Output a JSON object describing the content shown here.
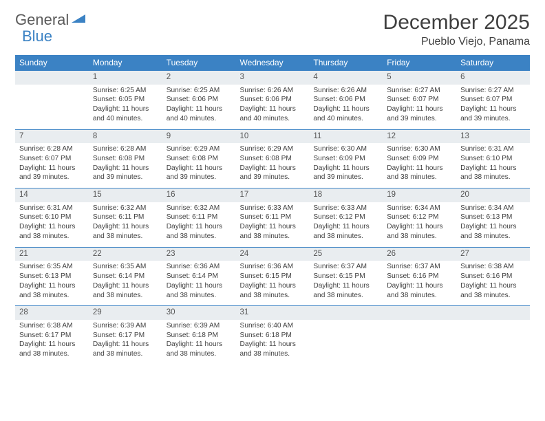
{
  "logo": {
    "part1": "General",
    "part2": "Blue"
  },
  "title": "December 2025",
  "location": "Pueblo Viejo, Panama",
  "colors": {
    "header_bg": "#3b82c4",
    "header_text": "#ffffff",
    "daynum_bg": "#e9edf0",
    "border": "#3b82c4",
    "text": "#404040"
  },
  "weekdays": [
    "Sunday",
    "Monday",
    "Tuesday",
    "Wednesday",
    "Thursday",
    "Friday",
    "Saturday"
  ],
  "weeks": [
    {
      "nums": [
        "",
        "1",
        "2",
        "3",
        "4",
        "5",
        "6"
      ],
      "cells": [
        null,
        {
          "sr": "Sunrise: 6:25 AM",
          "ss": "Sunset: 6:05 PM",
          "d1": "Daylight: 11 hours",
          "d2": "and 40 minutes."
        },
        {
          "sr": "Sunrise: 6:25 AM",
          "ss": "Sunset: 6:06 PM",
          "d1": "Daylight: 11 hours",
          "d2": "and 40 minutes."
        },
        {
          "sr": "Sunrise: 6:26 AM",
          "ss": "Sunset: 6:06 PM",
          "d1": "Daylight: 11 hours",
          "d2": "and 40 minutes."
        },
        {
          "sr": "Sunrise: 6:26 AM",
          "ss": "Sunset: 6:06 PM",
          "d1": "Daylight: 11 hours",
          "d2": "and 40 minutes."
        },
        {
          "sr": "Sunrise: 6:27 AM",
          "ss": "Sunset: 6:07 PM",
          "d1": "Daylight: 11 hours",
          "d2": "and 39 minutes."
        },
        {
          "sr": "Sunrise: 6:27 AM",
          "ss": "Sunset: 6:07 PM",
          "d1": "Daylight: 11 hours",
          "d2": "and 39 minutes."
        }
      ]
    },
    {
      "nums": [
        "7",
        "8",
        "9",
        "10",
        "11",
        "12",
        "13"
      ],
      "cells": [
        {
          "sr": "Sunrise: 6:28 AM",
          "ss": "Sunset: 6:07 PM",
          "d1": "Daylight: 11 hours",
          "d2": "and 39 minutes."
        },
        {
          "sr": "Sunrise: 6:28 AM",
          "ss": "Sunset: 6:08 PM",
          "d1": "Daylight: 11 hours",
          "d2": "and 39 minutes."
        },
        {
          "sr": "Sunrise: 6:29 AM",
          "ss": "Sunset: 6:08 PM",
          "d1": "Daylight: 11 hours",
          "d2": "and 39 minutes."
        },
        {
          "sr": "Sunrise: 6:29 AM",
          "ss": "Sunset: 6:08 PM",
          "d1": "Daylight: 11 hours",
          "d2": "and 39 minutes."
        },
        {
          "sr": "Sunrise: 6:30 AM",
          "ss": "Sunset: 6:09 PM",
          "d1": "Daylight: 11 hours",
          "d2": "and 39 minutes."
        },
        {
          "sr": "Sunrise: 6:30 AM",
          "ss": "Sunset: 6:09 PM",
          "d1": "Daylight: 11 hours",
          "d2": "and 38 minutes."
        },
        {
          "sr": "Sunrise: 6:31 AM",
          "ss": "Sunset: 6:10 PM",
          "d1": "Daylight: 11 hours",
          "d2": "and 38 minutes."
        }
      ]
    },
    {
      "nums": [
        "14",
        "15",
        "16",
        "17",
        "18",
        "19",
        "20"
      ],
      "cells": [
        {
          "sr": "Sunrise: 6:31 AM",
          "ss": "Sunset: 6:10 PM",
          "d1": "Daylight: 11 hours",
          "d2": "and 38 minutes."
        },
        {
          "sr": "Sunrise: 6:32 AM",
          "ss": "Sunset: 6:11 PM",
          "d1": "Daylight: 11 hours",
          "d2": "and 38 minutes."
        },
        {
          "sr": "Sunrise: 6:32 AM",
          "ss": "Sunset: 6:11 PM",
          "d1": "Daylight: 11 hours",
          "d2": "and 38 minutes."
        },
        {
          "sr": "Sunrise: 6:33 AM",
          "ss": "Sunset: 6:11 PM",
          "d1": "Daylight: 11 hours",
          "d2": "and 38 minutes."
        },
        {
          "sr": "Sunrise: 6:33 AM",
          "ss": "Sunset: 6:12 PM",
          "d1": "Daylight: 11 hours",
          "d2": "and 38 minutes."
        },
        {
          "sr": "Sunrise: 6:34 AM",
          "ss": "Sunset: 6:12 PM",
          "d1": "Daylight: 11 hours",
          "d2": "and 38 minutes."
        },
        {
          "sr": "Sunrise: 6:34 AM",
          "ss": "Sunset: 6:13 PM",
          "d1": "Daylight: 11 hours",
          "d2": "and 38 minutes."
        }
      ]
    },
    {
      "nums": [
        "21",
        "22",
        "23",
        "24",
        "25",
        "26",
        "27"
      ],
      "cells": [
        {
          "sr": "Sunrise: 6:35 AM",
          "ss": "Sunset: 6:13 PM",
          "d1": "Daylight: 11 hours",
          "d2": "and 38 minutes."
        },
        {
          "sr": "Sunrise: 6:35 AM",
          "ss": "Sunset: 6:14 PM",
          "d1": "Daylight: 11 hours",
          "d2": "and 38 minutes."
        },
        {
          "sr": "Sunrise: 6:36 AM",
          "ss": "Sunset: 6:14 PM",
          "d1": "Daylight: 11 hours",
          "d2": "and 38 minutes."
        },
        {
          "sr": "Sunrise: 6:36 AM",
          "ss": "Sunset: 6:15 PM",
          "d1": "Daylight: 11 hours",
          "d2": "and 38 minutes."
        },
        {
          "sr": "Sunrise: 6:37 AM",
          "ss": "Sunset: 6:15 PM",
          "d1": "Daylight: 11 hours",
          "d2": "and 38 minutes."
        },
        {
          "sr": "Sunrise: 6:37 AM",
          "ss": "Sunset: 6:16 PM",
          "d1": "Daylight: 11 hours",
          "d2": "and 38 minutes."
        },
        {
          "sr": "Sunrise: 6:38 AM",
          "ss": "Sunset: 6:16 PM",
          "d1": "Daylight: 11 hours",
          "d2": "and 38 minutes."
        }
      ]
    },
    {
      "nums": [
        "28",
        "29",
        "30",
        "31",
        "",
        "",
        ""
      ],
      "cells": [
        {
          "sr": "Sunrise: 6:38 AM",
          "ss": "Sunset: 6:17 PM",
          "d1": "Daylight: 11 hours",
          "d2": "and 38 minutes."
        },
        {
          "sr": "Sunrise: 6:39 AM",
          "ss": "Sunset: 6:17 PM",
          "d1": "Daylight: 11 hours",
          "d2": "and 38 minutes."
        },
        {
          "sr": "Sunrise: 6:39 AM",
          "ss": "Sunset: 6:18 PM",
          "d1": "Daylight: 11 hours",
          "d2": "and 38 minutes."
        },
        {
          "sr": "Sunrise: 6:40 AM",
          "ss": "Sunset: 6:18 PM",
          "d1": "Daylight: 11 hours",
          "d2": "and 38 minutes."
        },
        null,
        null,
        null
      ]
    }
  ]
}
